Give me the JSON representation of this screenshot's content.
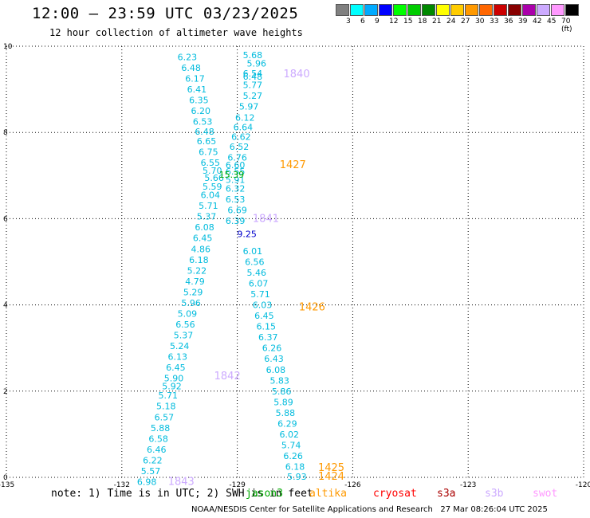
{
  "header": {
    "title": "12:00 – 23:59 UTC 03/23/2025",
    "subtitle": "12 hour collection of altimeter wave heights"
  },
  "color_scale": {
    "labels": [
      "3",
      "6",
      "9",
      "12",
      "15",
      "18",
      "21",
      "24",
      "27",
      "30",
      "33",
      "36",
      "39",
      "42",
      "45",
      "70 (ft)"
    ],
    "colors": [
      "#808080",
      "#00ffff",
      "#00aaff",
      "#0000ff",
      "#00ff00",
      "#00cc00",
      "#008800",
      "#ffff00",
      "#ffcc00",
      "#ff9900",
      "#ff6600",
      "#cc0000",
      "#880000",
      "#aa00aa",
      "#ccaaff",
      "#ff99ff",
      "#000000"
    ]
  },
  "note": "note: 1) Time is in UTC; 2) SWH is in feet",
  "legend": {
    "items": [
      {
        "label": "jason3",
        "color": "#00aa00"
      },
      {
        "label": "altika",
        "color": "#ff9900"
      },
      {
        "label": "cryosat",
        "color": "#ff0000"
      },
      {
        "label": "s3a",
        "color": "#aa0000"
      },
      {
        "label": "s3b",
        "color": "#ccaaff"
      },
      {
        "label": "swot",
        "color": "#ff99ff"
      }
    ]
  },
  "footer": "NOAA/NESDIS Center for Satellite Applications and Research   27 Mar 08:26:04 UTC 2025",
  "chart_data": {
    "type": "scatter",
    "xlim": [
      -135,
      -120
    ],
    "ylim": [
      0,
      10
    ],
    "x_ticks": [
      "-135",
      "-132",
      "-129",
      "-126",
      "-123",
      "-120"
    ],
    "y_ticks": [
      "0",
      "2",
      "4",
      "6",
      "8",
      "10"
    ],
    "grid": true,
    "points": [
      {
        "lon": -128.6,
        "lat": 9.8,
        "swh": "5.68",
        "color": "#00bbdd"
      },
      {
        "lon": -128.5,
        "lat": 9.6,
        "swh": "5.96",
        "color": "#00bbdd"
      },
      {
        "lon": -128.6,
        "lat": 9.37,
        "swh": "6.54",
        "color": "#00bbdd"
      },
      {
        "lon": -128.6,
        "lat": 9.3,
        "swh": "6.48",
        "color": "#00bbdd"
      },
      {
        "lon": -128.6,
        "lat": 9.1,
        "swh": "5.77",
        "color": "#00bbdd"
      },
      {
        "lon": -128.6,
        "lat": 8.85,
        "swh": "5.27",
        "color": "#00bbdd"
      },
      {
        "lon": -128.7,
        "lat": 8.6,
        "swh": "5.97",
        "color": "#00bbdd"
      },
      {
        "lon": -128.8,
        "lat": 8.35,
        "swh": "6.12",
        "color": "#00bbdd"
      },
      {
        "lon": -128.85,
        "lat": 8.12,
        "swh": "6.64",
        "color": "#00bbdd"
      },
      {
        "lon": -128.9,
        "lat": 7.9,
        "swh": "6.62",
        "color": "#00bbdd"
      },
      {
        "lon": -128.95,
        "lat": 7.67,
        "swh": "6.52",
        "color": "#00bbdd"
      },
      {
        "lon": -129.0,
        "lat": 7.42,
        "swh": "6.76",
        "color": "#00bbdd"
      },
      {
        "lon": -129.05,
        "lat": 7.25,
        "swh": "6.60",
        "color": "#00bbdd"
      },
      {
        "lon": -129.05,
        "lat": 7.1,
        "swh": "6.55",
        "color": "#00bbdd"
      },
      {
        "lon": -129.05,
        "lat": 6.9,
        "swh": "5.91",
        "color": "#00bbdd"
      },
      {
        "lon": -129.05,
        "lat": 6.7,
        "swh": "6.32",
        "color": "#00bbdd"
      },
      {
        "lon": -129.05,
        "lat": 6.45,
        "swh": "6.53",
        "color": "#00bbdd"
      },
      {
        "lon": -129.0,
        "lat": 6.2,
        "swh": "6.69",
        "color": "#00bbdd"
      },
      {
        "lon": -129.05,
        "lat": 5.95,
        "swh": "6.39",
        "color": "#00bbdd"
      },
      {
        "lon": -128.6,
        "lat": 5.25,
        "swh": "6.01",
        "color": "#00bbdd"
      },
      {
        "lon": -128.55,
        "lat": 5.0,
        "swh": "6.56",
        "color": "#00bbdd"
      },
      {
        "lon": -128.5,
        "lat": 4.75,
        "swh": "5.46",
        "color": "#00bbdd"
      },
      {
        "lon": -128.45,
        "lat": 4.5,
        "swh": "6.07",
        "color": "#00bbdd"
      },
      {
        "lon": -128.4,
        "lat": 4.25,
        "swh": "5.71",
        "color": "#00bbdd"
      },
      {
        "lon": -128.35,
        "lat": 4.0,
        "swh": "6.03",
        "color": "#00bbdd"
      },
      {
        "lon": -128.3,
        "lat": 3.75,
        "swh": "6.45",
        "color": "#00bbdd"
      },
      {
        "lon": -128.25,
        "lat": 3.5,
        "swh": "6.15",
        "color": "#00bbdd"
      },
      {
        "lon": -128.2,
        "lat": 3.25,
        "swh": "6.37",
        "color": "#00bbdd"
      },
      {
        "lon": -128.1,
        "lat": 3.0,
        "swh": "6.26",
        "color": "#00bbdd"
      },
      {
        "lon": -128.05,
        "lat": 2.75,
        "swh": "6.43",
        "color": "#00bbdd"
      },
      {
        "lon": -128.0,
        "lat": 2.5,
        "swh": "6.08",
        "color": "#00bbdd"
      },
      {
        "lon": -127.9,
        "lat": 2.25,
        "swh": "5.83",
        "color": "#00bbdd"
      },
      {
        "lon": -127.85,
        "lat": 2.0,
        "swh": "5.86",
        "color": "#00bbdd"
      },
      {
        "lon": -127.8,
        "lat": 1.75,
        "swh": "5.89",
        "color": "#00bbdd"
      },
      {
        "lon": -127.75,
        "lat": 1.5,
        "swh": "5.88",
        "color": "#00bbdd"
      },
      {
        "lon": -127.7,
        "lat": 1.25,
        "swh": "6.29",
        "color": "#00bbdd"
      },
      {
        "lon": -127.65,
        "lat": 1.0,
        "swh": "6.02",
        "color": "#00bbdd"
      },
      {
        "lon": -127.6,
        "lat": 0.75,
        "swh": "5.74",
        "color": "#00bbdd"
      },
      {
        "lon": -127.55,
        "lat": 0.5,
        "swh": "6.26",
        "color": "#00bbdd"
      },
      {
        "lon": -127.5,
        "lat": 0.25,
        "swh": "6.18",
        "color": "#00bbdd"
      },
      {
        "lon": -127.45,
        "lat": 0.02,
        "swh": "5.93",
        "color": "#00bbdd"
      },
      {
        "lon": -130.3,
        "lat": 9.75,
        "swh": "6.23",
        "color": "#00bbdd"
      },
      {
        "lon": -130.2,
        "lat": 9.5,
        "swh": "6.48",
        "color": "#00bbdd"
      },
      {
        "lon": -130.1,
        "lat": 9.25,
        "swh": "6.17",
        "color": "#00bbdd"
      },
      {
        "lon": -130.05,
        "lat": 9.0,
        "swh": "6.41",
        "color": "#00bbdd"
      },
      {
        "lon": -130.0,
        "lat": 8.75,
        "swh": "6.35",
        "color": "#00bbdd"
      },
      {
        "lon": -129.95,
        "lat": 8.5,
        "swh": "6.20",
        "color": "#00bbdd"
      },
      {
        "lon": -129.9,
        "lat": 8.25,
        "swh": "6.53",
        "color": "#00bbdd"
      },
      {
        "lon": -129.85,
        "lat": 8.02,
        "swh": "6.48",
        "color": "#00bbdd"
      },
      {
        "lon": -129.8,
        "lat": 7.8,
        "swh": "6.65",
        "color": "#00bbdd"
      },
      {
        "lon": -129.75,
        "lat": 7.55,
        "swh": "6.75",
        "color": "#00bbdd"
      },
      {
        "lon": -129.7,
        "lat": 7.3,
        "swh": "6.55",
        "color": "#00bbdd"
      },
      {
        "lon": -129.65,
        "lat": 7.12,
        "swh": "5.70",
        "color": "#00bbdd"
      },
      {
        "lon": -129.6,
        "lat": 6.95,
        "swh": "5.66",
        "color": "#00bbdd"
      },
      {
        "lon": -129.65,
        "lat": 6.75,
        "swh": "5.59",
        "color": "#00bbdd"
      },
      {
        "lon": -129.7,
        "lat": 6.55,
        "swh": "6.04",
        "color": "#00bbdd"
      },
      {
        "lon": -129.75,
        "lat": 6.3,
        "swh": "5.71",
        "color": "#00bbdd"
      },
      {
        "lon": -129.8,
        "lat": 6.05,
        "swh": "5.37",
        "color": "#00bbdd"
      },
      {
        "lon": -129.85,
        "lat": 5.8,
        "swh": "6.08",
        "color": "#00bbdd"
      },
      {
        "lon": -129.9,
        "lat": 5.55,
        "swh": "6.45",
        "color": "#00bbdd"
      },
      {
        "lon": -129.95,
        "lat": 5.3,
        "swh": "4.86",
        "color": "#00bbdd"
      },
      {
        "lon": -130.0,
        "lat": 5.05,
        "swh": "6.18",
        "color": "#00bbdd"
      },
      {
        "lon": -130.05,
        "lat": 4.8,
        "swh": "5.22",
        "color": "#00bbdd"
      },
      {
        "lon": -130.1,
        "lat": 4.55,
        "swh": "4.79",
        "color": "#00bbdd"
      },
      {
        "lon": -130.15,
        "lat": 4.3,
        "swh": "5.29",
        "color": "#00bbdd"
      },
      {
        "lon": -130.2,
        "lat": 4.05,
        "swh": "5.96",
        "color": "#00bbdd"
      },
      {
        "lon": -130.3,
        "lat": 3.8,
        "swh": "5.09",
        "color": "#00bbdd"
      },
      {
        "lon": -130.35,
        "lat": 3.55,
        "swh": "6.56",
        "color": "#00bbdd"
      },
      {
        "lon": -130.4,
        "lat": 3.3,
        "swh": "5.37",
        "color": "#00bbdd"
      },
      {
        "lon": -130.5,
        "lat": 3.05,
        "swh": "5.24",
        "color": "#00bbdd"
      },
      {
        "lon": -130.55,
        "lat": 2.8,
        "swh": "6.13",
        "color": "#00bbdd"
      },
      {
        "lon": -130.6,
        "lat": 2.55,
        "swh": "6.45",
        "color": "#00bbdd"
      },
      {
        "lon": -130.65,
        "lat": 2.3,
        "swh": "5.90",
        "color": "#00bbdd"
      },
      {
        "lon": -130.7,
        "lat": 2.12,
        "swh": "5.92",
        "color": "#00bbdd"
      },
      {
        "lon": -130.8,
        "lat": 1.9,
        "swh": "5.71",
        "color": "#00bbdd"
      },
      {
        "lon": -130.85,
        "lat": 1.65,
        "swh": "5.18",
        "color": "#00bbdd"
      },
      {
        "lon": -130.9,
        "lat": 1.4,
        "swh": "6.57",
        "color": "#00bbdd"
      },
      {
        "lon": -131.0,
        "lat": 1.15,
        "swh": "5.88",
        "color": "#00bbdd"
      },
      {
        "lon": -131.05,
        "lat": 0.9,
        "swh": "6.58",
        "color": "#00bbdd"
      },
      {
        "lon": -131.1,
        "lat": 0.65,
        "swh": "6.46",
        "color": "#00bbdd"
      },
      {
        "lon": -131.2,
        "lat": 0.4,
        "swh": "6.22",
        "color": "#00bbdd"
      },
      {
        "lon": -131.25,
        "lat": 0.15,
        "swh": "5.57",
        "color": "#00bbdd"
      },
      {
        "lon": -131.35,
        "lat": -0.1,
        "swh": "6.98",
        "color": "#00bbdd"
      },
      {
        "lon": -129.15,
        "lat": 7.02,
        "swh": "15.39",
        "color": "#00aa00"
      },
      {
        "lon": -128.75,
        "lat": 5.65,
        "swh": "9.25",
        "color": "#0000cc"
      }
    ],
    "track_labels": [
      {
        "lon": -127.8,
        "lat": 9.35,
        "text": "1840",
        "color": "#ccaaff"
      },
      {
        "lon": -127.9,
        "lat": 7.25,
        "text": "1427",
        "color": "#ff9900"
      },
      {
        "lon": -128.6,
        "lat": 6.0,
        "text": "1841",
        "color": "#ccaaff"
      },
      {
        "lon": -127.4,
        "lat": 3.95,
        "text": "1426",
        "color": "#ff9900"
      },
      {
        "lon": -129.6,
        "lat": 2.35,
        "text": "1842",
        "color": "#ccaaff"
      },
      {
        "lon": -130.8,
        "lat": -0.1,
        "text": "1843",
        "color": "#ccaaff"
      },
      {
        "lon": -126.9,
        "lat": 0.22,
        "text": "1425",
        "color": "#ff9900"
      },
      {
        "lon": -126.9,
        "lat": 0.02,
        "text": "1424",
        "color": "#ff9900"
      }
    ]
  }
}
